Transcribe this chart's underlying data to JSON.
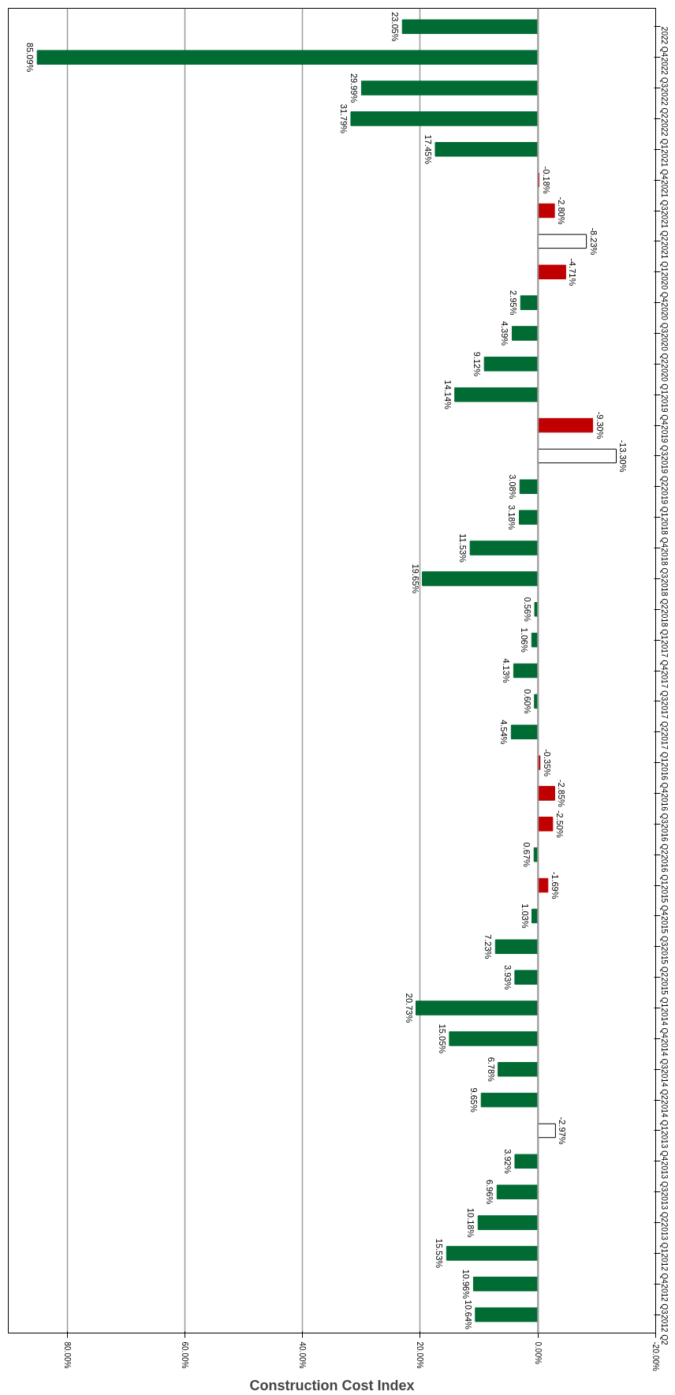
{
  "chart_data": {
    "type": "bar",
    "orientation": "horizontal",
    "xlabel": "Construction Cost Index",
    "categories": [
      "2022 Q4",
      "2022 Q3",
      "2022 Q2",
      "2022 Q1",
      "2021 Q4",
      "2021 Q3",
      "2021 Q2",
      "2021 Q1",
      "2020 Q4",
      "2020 Q3",
      "2020 Q2",
      "2020 Q1",
      "2019 Q4",
      "2019 Q3",
      "2019 Q2",
      "2019 Q1",
      "2018 Q4",
      "2018 Q3",
      "2018 Q2",
      "2018 Q1",
      "2017 Q4",
      "2017 Q3",
      "2017 Q2",
      "2017 Q1",
      "2016 Q4",
      "2016 Q3",
      "2016 Q2",
      "2016 Q1",
      "2015 Q4",
      "2015 Q3",
      "2015 Q2",
      "2015 Q1",
      "2014 Q4",
      "2014 Q3",
      "2014 Q2",
      "2014 Q1",
      "2013 Q4",
      "2013 Q3",
      "2013 Q2",
      "2013 Q1",
      "2012 Q4",
      "2012 Q3",
      "2012 Q2"
    ],
    "values": [
      23.05,
      85.09,
      29.99,
      31.79,
      17.45,
      -0.18,
      -2.8,
      -8.23,
      -4.71,
      2.95,
      4.39,
      9.12,
      14.14,
      -9.3,
      -13.3,
      3.08,
      3.18,
      11.53,
      19.65,
      0.56,
      1.06,
      4.13,
      0.6,
      4.54,
      -0.35,
      -2.85,
      -2.5,
      0.67,
      -1.69,
      1.03,
      7.23,
      3.93,
      20.73,
      15.05,
      6.78,
      9.65,
      -2.97,
      3.92,
      6.96,
      10.18,
      15.53,
      10.96,
      10.64
    ],
    "value_labels": [
      "23.05%",
      "85.09%",
      "29.99%",
      "31.79%",
      "17.45%",
      "-0.18%",
      "-2.80%",
      "-8.23%",
      "-4.71%",
      "2.95%",
      "4.39%",
      "9.12%",
      "14.14%",
      "-9.30%",
      "-13.30%",
      "3.08%",
      "3.18%",
      "11.53%",
      "19.65%",
      "0.56%",
      "1.06%",
      "4.13%",
      "0.60%",
      "4.54%",
      "-0.35%",
      "-2.85%",
      "-2.50%",
      "0.67%",
      "-1.69%",
      "1.03%",
      "7.23%",
      "3.93%",
      "20.73%",
      "15.05%",
      "6.78%",
      "9.65%",
      "-2.97%",
      "3.92%",
      "6.96%",
      "10.18%",
      "15.53%",
      "10.96%",
      "10.64%"
    ],
    "colors": [
      "#006b33",
      "#006b33",
      "#006b33",
      "#006b33",
      "#006b33",
      "#c00000",
      "#c00000",
      "#ffffff",
      "#c00000",
      "#006b33",
      "#006b33",
      "#006b33",
      "#006b33",
      "#c00000",
      "#ffffff",
      "#006b33",
      "#006b33",
      "#006b33",
      "#006b33",
      "#006b33",
      "#006b33",
      "#006b33",
      "#006b33",
      "#006b33",
      "#c00000",
      "#c00000",
      "#c00000",
      "#006b33",
      "#c00000",
      "#006b33",
      "#006b33",
      "#006b33",
      "#006b33",
      "#006b33",
      "#006b33",
      "#006b33",
      "#ffffff",
      "#006b33",
      "#006b33",
      "#006b33",
      "#006b33",
      "#006b33",
      "#006b33"
    ],
    "xlim": [
      90,
      -20
    ],
    "xticks": [
      {
        "value": 80,
        "label": "80.00%"
      },
      {
        "value": 60,
        "label": "60.00%"
      },
      {
        "value": 40,
        "label": "40.00%"
      },
      {
        "value": 20,
        "label": "20.00%"
      },
      {
        "value": 0,
        "label": "0.00%"
      },
      {
        "value": -20,
        "label": "-20.00%"
      }
    ],
    "grid": "x"
  }
}
